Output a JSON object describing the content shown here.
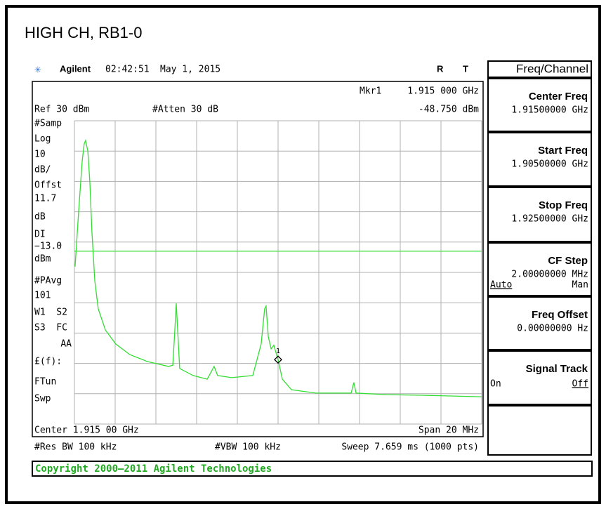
{
  "header": {
    "title": "HIGH CH, RB1-0"
  },
  "status": {
    "brand": "Agilent",
    "time": "02:42:51",
    "date": "May 1, 2015",
    "r": "R",
    "t": "T"
  },
  "readout": {
    "ref": "Ref 30 dBm",
    "atten": "#Atten 30 dB",
    "marker_name": "Mkr1"
  },
  "left_panel": [
    "#Samp",
    "Log",
    "10",
    "dB/",
    "Offst",
    "11.7",
    "dB",
    "DI",
    "−13.0",
    "dBm",
    "#PAvg",
    "101",
    "W1  S2",
    "S3  FC",
    "AA",
    "£(f):",
    "FTun",
    "Swp"
  ],
  "footer": {
    "center": "Center 1.915 00 GHz",
    "span": "Span 20 MHz",
    "rbw": "#Res BW 100 kHz",
    "vbw": "#VBW 100 kHz",
    "sweep": "Sweep 7.659 ms (1000 pts)"
  },
  "copyright": "Copyright 2000–2011 Agilent Technologies",
  "softkeys": {
    "title": "Freq/Channel",
    "keys": [
      {
        "label": "Center Freq",
        "value": "1.91500000 GHz"
      },
      {
        "label": "Start Freq",
        "value": "1.90500000 GHz"
      },
      {
        "label": "Stop Freq",
        "value": "1.92500000 GHz"
      },
      {
        "label": "CF Step",
        "value": "2.00000000 MHz",
        "left": "Auto",
        "right": "Man"
      },
      {
        "label": "Freq Offset",
        "value": "0.00000000 Hz"
      },
      {
        "label": "Signal Track",
        "left": "On",
        "right": "Off"
      }
    ]
  },
  "chart_data": {
    "type": "line",
    "xlim": [
      1905,
      1925
    ],
    "ylim": [
      -70,
      30
    ],
    "color": "#33dd33",
    "display_line": -13,
    "marker": {
      "name": "1",
      "x": 1915,
      "y": -48.75,
      "x_label": "1.915 000 GHz",
      "y_label": "-48.750 dBm"
    },
    "x": [
      1905.03,
      1905.21,
      1905.38,
      1905.48,
      1905.55,
      1905.66,
      1905.76,
      1905.86,
      1906.0,
      1906.17,
      1906.52,
      1907.03,
      1907.72,
      1908.59,
      1909.62,
      1909.83,
      1909.93,
      1910.0,
      1910.07,
      1910.17,
      1910.83,
      1911.52,
      1911.86,
      1912.03,
      1912.72,
      1913.76,
      1914.17,
      1914.34,
      1914.41,
      1914.52,
      1914.66,
      1914.79,
      1915.0,
      1915.21,
      1915.66,
      1916.86,
      1918.59,
      1918.72,
      1918.83,
      1920.31,
      1922.03,
      1925.0
    ],
    "series": [
      {
        "name": "W1",
        "values": [
          -18.1,
          0.4,
          16.6,
          22.4,
          23.5,
          20.0,
          9.6,
          -6.6,
          -22.8,
          -32.0,
          -39.0,
          -43.6,
          -47.1,
          -49.4,
          -51.0,
          -50.6,
          -39.0,
          -30.2,
          -39.0,
          -51.7,
          -54.0,
          -55.2,
          -51.0,
          -54.0,
          -54.7,
          -54.0,
          -43.6,
          -32.0,
          -31.1,
          -41.2,
          -45.2,
          -44.0,
          -48.75,
          -55.2,
          -58.7,
          -59.8,
          -59.8,
          -56.3,
          -59.8,
          -60.3,
          -60.5,
          -61.0
        ]
      }
    ]
  }
}
